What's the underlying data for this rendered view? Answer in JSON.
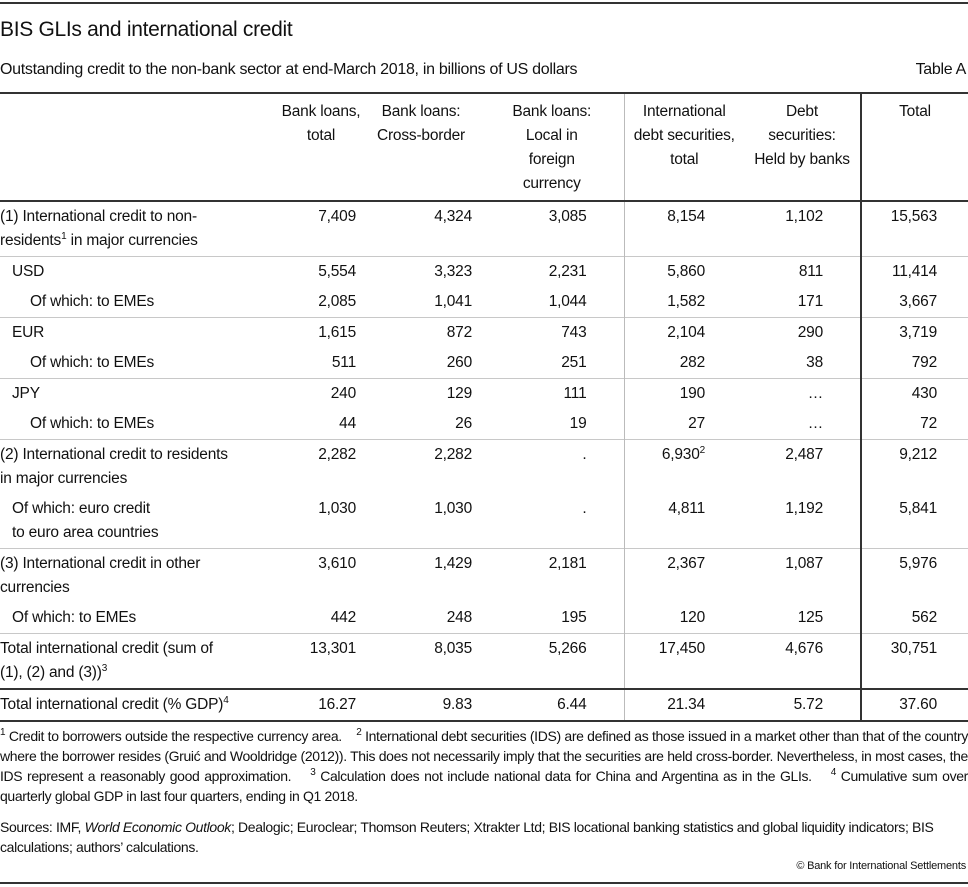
{
  "title": "BIS GLIs and international credit",
  "subtitle": "Outstanding credit to the non-bank sector at end-March 2018, in billions of US dollars",
  "table_label": "Table A",
  "columns": [
    [
      "Bank loans,",
      "total"
    ],
    [
      "Bank loans:",
      "Cross-border"
    ],
    [
      "Bank loans:",
      "Local in",
      "foreign",
      "currency"
    ],
    [
      "International",
      "debt securities,",
      "total"
    ],
    [
      "Debt",
      "securities:",
      "Held by banks"
    ],
    [
      "Total"
    ]
  ],
  "rows": [
    {
      "label": [
        "(1) International credit to non-",
        "residents",
        "1",
        " in major currencies"
      ],
      "values": [
        "7,409",
        "4,324",
        "3,085",
        "8,154",
        "1,102",
        "15,563"
      ]
    },
    {
      "label": [
        "USD"
      ],
      "values": [
        "5,554",
        "3,323",
        "2,231",
        "5,860",
        "811",
        "11,414"
      ]
    },
    {
      "label": [
        "Of which: to EMEs"
      ],
      "values": [
        "2,085",
        "1,041",
        "1,044",
        "1,582",
        "171",
        "3,667"
      ]
    },
    {
      "label": [
        "EUR"
      ],
      "values": [
        "1,615",
        "872",
        "743",
        "2,104",
        "290",
        "3,719"
      ]
    },
    {
      "label": [
        "Of which: to EMEs"
      ],
      "values": [
        "511",
        "260",
        "251",
        "282",
        "38",
        "792"
      ]
    },
    {
      "label": [
        "JPY"
      ],
      "values": [
        "240",
        "129",
        "111",
        "190",
        "…",
        "430"
      ]
    },
    {
      "label": [
        "Of which: to EMEs"
      ],
      "values": [
        "44",
        "26",
        "19",
        "27",
        "…",
        "72"
      ]
    },
    {
      "label": [
        "(2) International credit to residents",
        "in major currencies"
      ],
      "values": [
        "2,282",
        "2,282",
        ".",
        "6,930",
        "2,487",
        "9,212"
      ],
      "value_sup": "2"
    },
    {
      "label": [
        "Of which: euro credit",
        "to euro area countries"
      ],
      "values": [
        "1,030",
        "1,030",
        ".",
        "4,811",
        "1,192",
        "5,841"
      ]
    },
    {
      "label": [
        "(3) International credit in other",
        "currencies"
      ],
      "values": [
        "3,610",
        "1,429",
        "2,181",
        "2,367",
        "1,087",
        "5,976"
      ]
    },
    {
      "label": [
        "Of which: to EMEs"
      ],
      "values": [
        "442",
        "248",
        "195",
        "120",
        "125",
        "562"
      ]
    },
    {
      "label": [
        "Total international credit (sum of",
        "(1), (2) and (3))",
        "3"
      ],
      "values": [
        "13,301",
        "8,035",
        "5,266",
        "17,450",
        "4,676",
        "30,751"
      ]
    },
    {
      "label": [
        "Total international credit (% GDP)",
        "4"
      ],
      "values": [
        "16.27",
        "9.83",
        "6.44",
        "21.34",
        "5.72",
        "37.60"
      ]
    }
  ],
  "footnotes": [
    {
      "n": "1",
      "text": " Credit to borrowers outside the respective currency area."
    },
    {
      "n": "2",
      "text": " International debt securities (IDS) are defined as those issued in a market other than that of the country where the borrower resides (Gruić and Wooldridge (2012)). This does not necessarily imply that the securities are held cross-border. Nevertheless, in most cases, the IDS represent a reasonably good approximation."
    },
    {
      "n": "3",
      "text": " Calculation does not include national data for China and Argentina as in the GLIs."
    },
    {
      "n": "4",
      "text": " Cumulative sum over quarterly global GDP in last four quarters, ending in Q1 2018."
    }
  ],
  "sources": {
    "prefix": "Sources: IMF, ",
    "italic": "World Economic Outlook",
    "rest": "; Dealogic; Euroclear; Thomson Reuters; Xtrakter Ltd; BIS locational banking statistics and global liquidity indicators; BIS calculations; authors’ calculations."
  },
  "copyright": "© Bank for International Settlements"
}
